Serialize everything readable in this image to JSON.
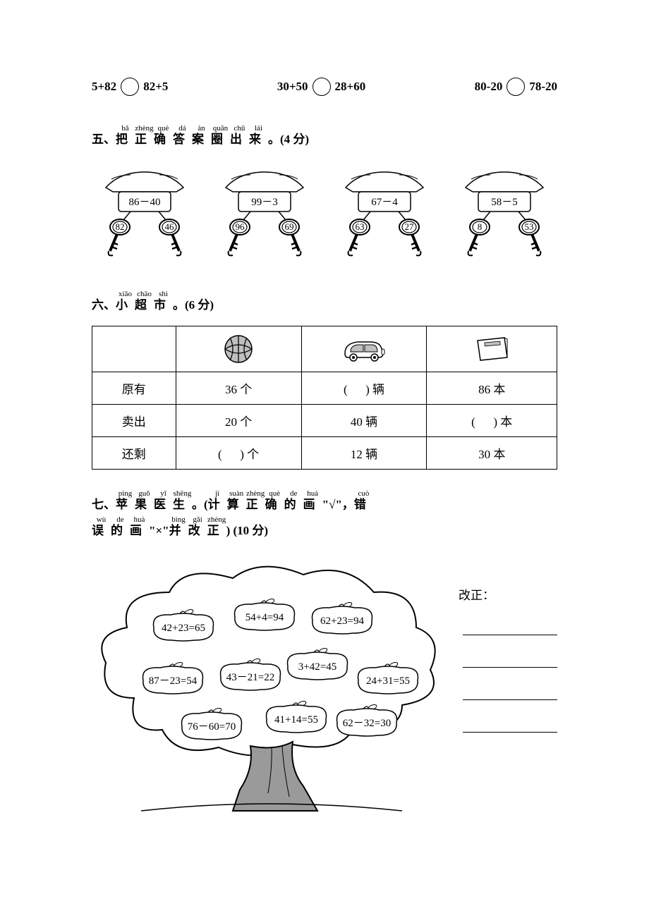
{
  "comparison": [
    {
      "left": "5+82",
      "right": "82+5"
    },
    {
      "left": "30+50",
      "right": "28+60"
    },
    {
      "left": "80-20",
      "right": "78-20"
    }
  ],
  "section5": {
    "num": "五、",
    "ruby": [
      {
        "c": "把",
        "p": "bǎ"
      },
      {
        "c": "正",
        "p": "zhèng"
      },
      {
        "c": "确",
        "p": "què"
      },
      {
        "c": "答",
        "p": "dá"
      },
      {
        "c": "案",
        "p": "àn"
      },
      {
        "c": "圈",
        "p": "quān"
      },
      {
        "c": "出",
        "p": "chū"
      },
      {
        "c": "来",
        "p": "lái"
      }
    ],
    "tail": "。(4 分)",
    "houses": [
      {
        "lock": "86－40",
        "k1": "82",
        "k2": "46"
      },
      {
        "lock": "99－3",
        "k1": "96",
        "k2": "69"
      },
      {
        "lock": "67－4",
        "k1": "63",
        "k2": "27"
      },
      {
        "lock": "58－5",
        "k1": "8",
        "k2": "53"
      }
    ]
  },
  "section6": {
    "num": "六、",
    "ruby": [
      {
        "c": "小",
        "p": "xiǎo"
      },
      {
        "c": "超",
        "p": "chāo"
      },
      {
        "c": "市",
        "p": "shì"
      }
    ],
    "tail": "。(6 分)",
    "rows": {
      "label_have": "原有",
      "label_sold": "卖出",
      "label_left": "还剩",
      "ball": {
        "have": "36 个",
        "sold": "20 个",
        "left_prefix": "(",
        "left_suffix": ") 个"
      },
      "car": {
        "have_prefix": "(",
        "have_suffix": ") 辆",
        "sold": "40 辆",
        "left": "12 辆"
      },
      "book": {
        "have": "86 本",
        "sold_prefix": "(",
        "sold_suffix": ") 本",
        "left": "30 本"
      }
    }
  },
  "section7": {
    "num": "七、",
    "ruby1": [
      {
        "c": "苹",
        "p": "píng"
      },
      {
        "c": "果",
        "p": "guǒ"
      },
      {
        "c": "医",
        "p": "yī"
      },
      {
        "c": "生",
        "p": "shēng"
      }
    ],
    "mid1": "。(",
    "ruby2": [
      {
        "c": "计",
        "p": "jì"
      },
      {
        "c": "算",
        "p": "suàn"
      },
      {
        "c": "正",
        "p": "zhèng"
      },
      {
        "c": "确",
        "p": "què"
      },
      {
        "c": "的",
        "p": "de"
      },
      {
        "c": "画",
        "p": "huà"
      }
    ],
    "mid2": "\"√\"，",
    "ruby3": [
      {
        "c": "错",
        "p": "cuò"
      },
      {
        "c": "误",
        "p": "wù"
      },
      {
        "c": "的",
        "p": "de"
      },
      {
        "c": "画",
        "p": "huà"
      }
    ],
    "mid3": "\"×\"",
    "ruby4": [
      {
        "c": "并",
        "p": "bìng"
      },
      {
        "c": "改",
        "p": "gǎi"
      },
      {
        "c": "正",
        "p": "zhèng"
      }
    ],
    "tail": ")  (10 分)",
    "apples": [
      "42+23=65",
      "54+4=94",
      "62+23=94",
      "87－23=54",
      "43－21=22",
      "3+42=45",
      "24+31=55",
      "76－60=70",
      "41+14=55",
      "62－32=30"
    ],
    "corr_label": "改正："
  }
}
